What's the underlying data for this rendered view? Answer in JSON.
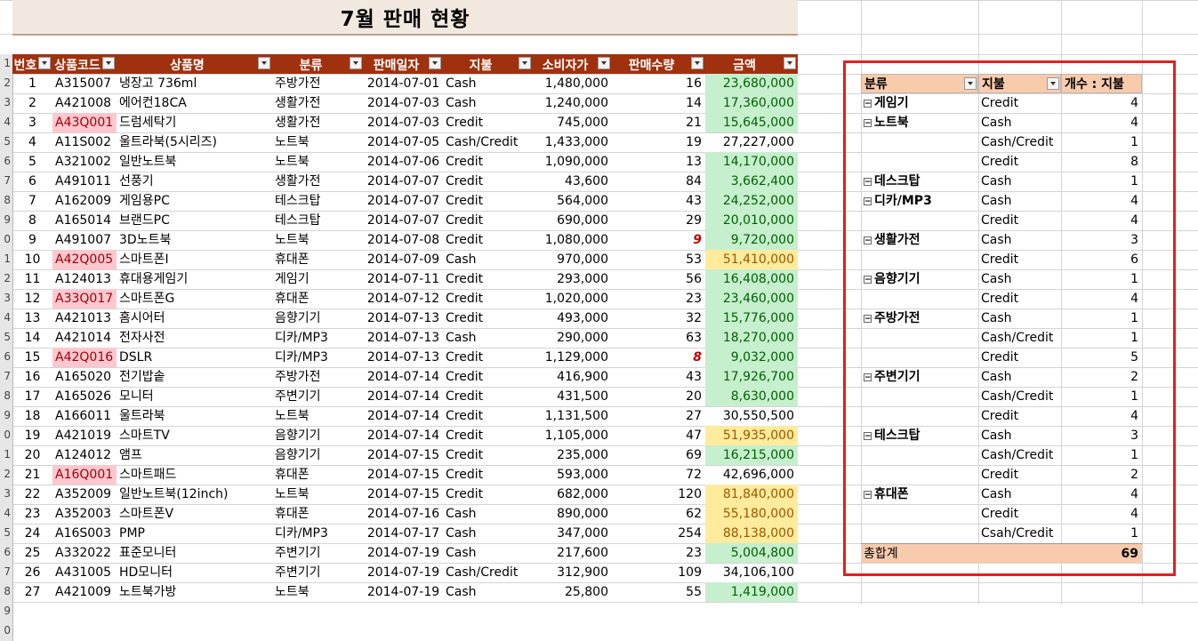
{
  "sheet": {
    "title": "7월 판매 현황",
    "headers": [
      "번호",
      "상품코드",
      "상품명",
      "분류",
      "판매일자",
      "지불",
      "소비자가",
      "판매수량",
      "금액"
    ],
    "row_labels": [
      "1",
      "2",
      "3",
      "4",
      "5",
      "6",
      "7",
      "8",
      "9",
      "0",
      "1",
      "2",
      "3",
      "4",
      "5",
      "6",
      "7",
      "8",
      "9",
      "0",
      "1",
      "2",
      "3",
      "4",
      "5",
      "6",
      "7",
      "8",
      "9",
      "0"
    ],
    "rows": [
      {
        "no": "1",
        "code": "A315007",
        "name": "냉장고 736ml",
        "cat": "주방가전",
        "date": "2014-07-01",
        "pay": "Cash",
        "price": "1,480,000",
        "qty": "16",
        "amt": "23,680,000",
        "fill": "g"
      },
      {
        "no": "2",
        "code": "A421008",
        "name": "에어컨18CA",
        "cat": "생활가전",
        "date": "2014-07-03",
        "pay": "Cash",
        "price": "1,240,000",
        "qty": "14",
        "amt": "17,360,000",
        "fill": "g"
      },
      {
        "no": "3",
        "code": "A43Q001",
        "name": "드럼세탁기",
        "cat": "생활가전",
        "date": "2014-07-03",
        "pay": "Credit",
        "price": "745,000",
        "qty": "21",
        "amt": "15,645,000",
        "fill": "g",
        "code_hl": true
      },
      {
        "no": "4",
        "code": "A11S002",
        "name": "울트라북(5시리즈)",
        "cat": "노트북",
        "date": "2014-07-05",
        "pay": "Cash/Credit",
        "price": "1,433,000",
        "qty": "19",
        "amt": "27,227,000",
        "fill": ""
      },
      {
        "no": "5",
        "code": "A321002",
        "name": "일반노트북",
        "cat": "노트북",
        "date": "2014-07-06",
        "pay": "Credit",
        "price": "1,090,000",
        "qty": "13",
        "amt": "14,170,000",
        "fill": "g"
      },
      {
        "no": "6",
        "code": "A491011",
        "name": "선풍기",
        "cat": "생활가전",
        "date": "2014-07-07",
        "pay": "Credit",
        "price": "43,600",
        "qty": "84",
        "amt": "3,662,400",
        "fill": "g"
      },
      {
        "no": "7",
        "code": "A162009",
        "name": "게임용PC",
        "cat": "테스크탑",
        "date": "2014-07-07",
        "pay": "Credit",
        "price": "564,000",
        "qty": "43",
        "amt": "24,252,000",
        "fill": "g"
      },
      {
        "no": "8",
        "code": "A165014",
        "name": "브랜드PC",
        "cat": "테스크탑",
        "date": "2014-07-07",
        "pay": "Credit",
        "price": "690,000",
        "qty": "29",
        "amt": "20,010,000",
        "fill": "g"
      },
      {
        "no": "9",
        "code": "A491007",
        "name": "3D노트북",
        "cat": "노트북",
        "date": "2014-07-08",
        "pay": "Credit",
        "price": "1,080,000",
        "qty": "9",
        "amt": "9,720,000",
        "fill": "g",
        "qty_red": true
      },
      {
        "no": "10",
        "code": "A42Q005",
        "name": "스마트폰I",
        "cat": "휴대폰",
        "date": "2014-07-09",
        "pay": "Cash",
        "price": "970,000",
        "qty": "53",
        "amt": "51,410,000",
        "fill": "y",
        "code_hl": true
      },
      {
        "no": "11",
        "code": "A124013",
        "name": "휴대용게임기",
        "cat": "게임기",
        "date": "2014-07-11",
        "pay": "Credit",
        "price": "293,000",
        "qty": "56",
        "amt": "16,408,000",
        "fill": "g"
      },
      {
        "no": "12",
        "code": "A33Q017",
        "name": "스마트폰G",
        "cat": "휴대폰",
        "date": "2014-07-12",
        "pay": "Credit",
        "price": "1,020,000",
        "qty": "23",
        "amt": "23,460,000",
        "fill": "g",
        "code_hl": true
      },
      {
        "no": "13",
        "code": "A421013",
        "name": "홈시어터",
        "cat": "음향기기",
        "date": "2014-07-13",
        "pay": "Credit",
        "price": "493,000",
        "qty": "32",
        "amt": "15,776,000",
        "fill": "g"
      },
      {
        "no": "14",
        "code": "A421014",
        "name": "전자사전",
        "cat": "디카/MP3",
        "date": "2014-07-13",
        "pay": "Cash",
        "price": "290,000",
        "qty": "63",
        "amt": "18,270,000",
        "fill": "g"
      },
      {
        "no": "15",
        "code": "A42Q016",
        "name": "DSLR",
        "cat": "디카/MP3",
        "date": "2014-07-13",
        "pay": "Credit",
        "price": "1,129,000",
        "qty": "8",
        "amt": "9,032,000",
        "fill": "g",
        "code_hl": true,
        "qty_red": true
      },
      {
        "no": "16",
        "code": "A165020",
        "name": "전기밥솥",
        "cat": "주방가전",
        "date": "2014-07-14",
        "pay": "Credit",
        "price": "416,900",
        "qty": "43",
        "amt": "17,926,700",
        "fill": "g"
      },
      {
        "no": "17",
        "code": "A165026",
        "name": "모니터",
        "cat": "주변기기",
        "date": "2014-07-14",
        "pay": "Credit",
        "price": "431,500",
        "qty": "20",
        "amt": "8,630,000",
        "fill": "g"
      },
      {
        "no": "18",
        "code": "A166011",
        "name": "울트라북",
        "cat": "노트북",
        "date": "2014-07-14",
        "pay": "Credit",
        "price": "1,131,500",
        "qty": "27",
        "amt": "30,550,500",
        "fill": ""
      },
      {
        "no": "19",
        "code": "A421019",
        "name": "스마트TV",
        "cat": "음향기기",
        "date": "2014-07-14",
        "pay": "Credit",
        "price": "1,105,000",
        "qty": "47",
        "amt": "51,935,000",
        "fill": "y"
      },
      {
        "no": "20",
        "code": "A124012",
        "name": "앰프",
        "cat": "음향기기",
        "date": "2014-07-15",
        "pay": "Credit",
        "price": "235,000",
        "qty": "69",
        "amt": "16,215,000",
        "fill": "g"
      },
      {
        "no": "21",
        "code": "A16Q001",
        "name": "스마트패드",
        "cat": "휴대폰",
        "date": "2014-07-15",
        "pay": "Credit",
        "price": "593,000",
        "qty": "72",
        "amt": "42,696,000",
        "fill": "",
        "code_hl": true
      },
      {
        "no": "22",
        "code": "A352009",
        "name": "일반노트북(12inch)",
        "cat": "노트북",
        "date": "2014-07-15",
        "pay": "Credit",
        "price": "682,000",
        "qty": "120",
        "amt": "81,840,000",
        "fill": "y"
      },
      {
        "no": "23",
        "code": "A352003",
        "name": "스마트폰V",
        "cat": "휴대폰",
        "date": "2014-07-16",
        "pay": "Cash",
        "price": "890,000",
        "qty": "62",
        "amt": "55,180,000",
        "fill": "y"
      },
      {
        "no": "24",
        "code": "A16S003",
        "name": "PMP",
        "cat": "디카/MP3",
        "date": "2014-07-17",
        "pay": "Cash",
        "price": "347,000",
        "qty": "254",
        "amt": "88,138,000",
        "fill": "y"
      },
      {
        "no": "25",
        "code": "A332022",
        "name": "표준모니터",
        "cat": "주변기기",
        "date": "2014-07-19",
        "pay": "Cash",
        "price": "217,600",
        "qty": "23",
        "amt": "5,004,800",
        "fill": "g"
      },
      {
        "no": "26",
        "code": "A431005",
        "name": "HD모니터",
        "cat": "주변기기",
        "date": "2014-07-19",
        "pay": "Cash/Credit",
        "price": "312,900",
        "qty": "109",
        "amt": "34,106,100",
        "fill": ""
      },
      {
        "no": "27",
        "code": "A421009",
        "name": "노트북가방",
        "cat": "노트북",
        "date": "2014-07-19",
        "pay": "Cash",
        "price": "25,800",
        "qty": "55",
        "amt": "1,419,000",
        "fill": "g"
      }
    ]
  },
  "pivot": {
    "headers": [
      "분류",
      "지불",
      "개수 : 지불"
    ],
    "collapse_glyph": "⊟",
    "rows": [
      {
        "cat": "게임기",
        "pay": "Credit",
        "count": "4"
      },
      {
        "cat": "노트북",
        "pay": "Cash",
        "count": "4"
      },
      {
        "cat": "",
        "pay": "Cash/Credit",
        "count": "1"
      },
      {
        "cat": "",
        "pay": "Credit",
        "count": "8"
      },
      {
        "cat": "데스크탑",
        "pay": "Cash",
        "count": "1"
      },
      {
        "cat": "디카/MP3",
        "pay": "Cash",
        "count": "4"
      },
      {
        "cat": "",
        "pay": "Credit",
        "count": "4"
      },
      {
        "cat": "생활가전",
        "pay": "Cash",
        "count": "3"
      },
      {
        "cat": "",
        "pay": "Credit",
        "count": "6"
      },
      {
        "cat": "음향기기",
        "pay": "Cash",
        "count": "1"
      },
      {
        "cat": "",
        "pay": "Credit",
        "count": "4"
      },
      {
        "cat": "주방가전",
        "pay": "Cash",
        "count": "1"
      },
      {
        "cat": "",
        "pay": "Cash/Credit",
        "count": "1"
      },
      {
        "cat": "",
        "pay": "Credit",
        "count": "5"
      },
      {
        "cat": "주변기기",
        "pay": "Cash",
        "count": "2"
      },
      {
        "cat": "",
        "pay": "Cash/Credit",
        "count": "1"
      },
      {
        "cat": "",
        "pay": "Credit",
        "count": "4"
      },
      {
        "cat": "테스크탑",
        "pay": "Cash",
        "count": "3"
      },
      {
        "cat": "",
        "pay": "Cash/Credit",
        "count": "1"
      },
      {
        "cat": "",
        "pay": "Credit",
        "count": "2"
      },
      {
        "cat": "휴대폰",
        "pay": "Cash",
        "count": "4"
      },
      {
        "cat": "",
        "pay": "Credit",
        "count": "4"
      },
      {
        "cat": "",
        "pay": "Csah/Credit",
        "count": "1"
      }
    ],
    "total_label": "총합계",
    "total_value": "69"
  },
  "colors": {
    "header_bg": "#a0310e",
    "title_bg": "#f1e9df",
    "good_fill": "#c6efce",
    "warn_fill": "#ffeb9c",
    "bad_fill": "#ffc7ce",
    "pivot_header": "#f8cbad",
    "highlight_box": "#e02020"
  }
}
